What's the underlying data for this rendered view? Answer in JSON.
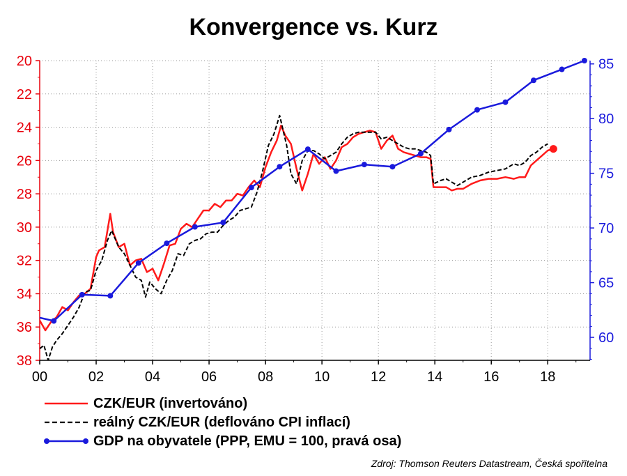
{
  "chart_data": {
    "type": "line",
    "title": "Konvergence vs. Kurz",
    "source": "Zdroj: Thomson Reuters Datastream, Česká spořitelna",
    "x_axis": {
      "range": [
        2000,
        2019.5
      ],
      "ticks": [
        2000,
        2002,
        2004,
        2006,
        2008,
        2010,
        2012,
        2014,
        2016,
        2018
      ],
      "tick_labels": [
        "00",
        "02",
        "04",
        "06",
        "08",
        "10",
        "12",
        "14",
        "16",
        "18"
      ]
    },
    "y_left": {
      "range": [
        38,
        20
      ],
      "inverted": true,
      "ticks": [
        20,
        22,
        24,
        26,
        28,
        30,
        32,
        34,
        36,
        38
      ],
      "tick_labels": [
        "20",
        "22",
        "24",
        "26",
        "28",
        "30",
        "32",
        "34",
        "36",
        "38"
      ],
      "color": "#e8000b"
    },
    "y_right": {
      "range": [
        57.9,
        85.3
      ],
      "ticks": [
        60,
        65,
        70,
        75,
        80,
        85
      ],
      "tick_labels": [
        "60",
        "65",
        "70",
        "75",
        "80",
        "85"
      ],
      "color": "#1a1adc"
    },
    "grid": true,
    "legend_position": "bottom",
    "series": [
      {
        "name": "CZK/EUR (invertováno)",
        "axis": "left",
        "color": "#ff1a1a",
        "style": "solid",
        "x": [
          2000.0,
          2000.2,
          2000.4,
          2000.6,
          2000.8,
          2001.0,
          2001.2,
          2001.4,
          2001.6,
          2001.8,
          2002.0,
          2002.1,
          2002.3,
          2002.5,
          2002.6,
          2002.8,
          2003.0,
          2003.2,
          2003.4,
          2003.6,
          2003.8,
          2004.0,
          2004.2,
          2004.4,
          2004.6,
          2004.8,
          2005.0,
          2005.2,
          2005.4,
          2005.6,
          2005.8,
          2006.0,
          2006.2,
          2006.4,
          2006.6,
          2006.8,
          2007.0,
          2007.2,
          2007.4,
          2007.6,
          2007.8,
          2008.0,
          2008.2,
          2008.4,
          2008.55,
          2008.7,
          2008.9,
          2009.1,
          2009.3,
          2009.5,
          2009.7,
          2009.9,
          2010.1,
          2010.3,
          2010.5,
          2010.7,
          2010.9,
          2011.1,
          2011.3,
          2011.5,
          2011.7,
          2011.9,
          2012.1,
          2012.3,
          2012.5,
          2012.7,
          2012.9,
          2013.1,
          2013.3,
          2013.5,
          2013.7,
          2013.85,
          2013.95,
          2014.2,
          2014.4,
          2014.6,
          2014.8,
          2015.0,
          2015.3,
          2015.6,
          2015.9,
          2016.2,
          2016.5,
          2016.8,
          2017.0,
          2017.2,
          2017.4,
          2017.6,
          2017.8,
          2018.0,
          2018.2
        ],
        "y": [
          35.6,
          36.2,
          35.7,
          35.4,
          34.8,
          35.0,
          34.5,
          34.1,
          34.0,
          33.7,
          31.8,
          31.4,
          31.2,
          29.2,
          30.3,
          31.2,
          31.0,
          32.3,
          32.0,
          31.9,
          32.7,
          32.5,
          33.2,
          32.2,
          31.1,
          31.0,
          30.1,
          29.8,
          30.0,
          29.5,
          29.0,
          29.0,
          28.6,
          28.8,
          28.4,
          28.4,
          28.0,
          28.1,
          27.6,
          27.2,
          27.6,
          26.4,
          25.5,
          24.8,
          23.9,
          24.5,
          25.0,
          26.5,
          27.8,
          26.8,
          25.6,
          26.2,
          25.8,
          26.5,
          26.0,
          25.2,
          25.0,
          24.6,
          24.4,
          24.3,
          24.2,
          24.3,
          25.3,
          24.8,
          24.5,
          25.3,
          25.5,
          25.6,
          25.7,
          25.8,
          25.8,
          25.9,
          27.6,
          27.6,
          27.6,
          27.8,
          27.7,
          27.7,
          27.4,
          27.2,
          27.1,
          27.1,
          27.0,
          27.1,
          27.0,
          27.0,
          26.3,
          26.0,
          25.7,
          25.4,
          25.3
        ]
      },
      {
        "name": "reálný CZK/EUR (deflováno CPI inflací)",
        "axis": "left",
        "color": "#000000",
        "style": "dashed",
        "x": [
          2000.0,
          2000.15,
          2000.3,
          2000.45,
          2000.6,
          2000.8,
          2001.0,
          2001.2,
          2001.4,
          2001.6,
          2001.8,
          2002.0,
          2002.2,
          2002.4,
          2002.55,
          2002.8,
          2003.0,
          2003.2,
          2003.4,
          2003.6,
          2003.75,
          2003.9,
          2004.1,
          2004.3,
          2004.5,
          2004.7,
          2004.9,
          2005.1,
          2005.3,
          2005.5,
          2005.7,
          2005.9,
          2006.1,
          2006.3,
          2006.5,
          2006.7,
          2006.9,
          2007.1,
          2007.3,
          2007.5,
          2007.7,
          2007.9,
          2008.1,
          2008.3,
          2008.5,
          2008.6,
          2008.75,
          2008.9,
          2009.1,
          2009.3,
          2009.5,
          2009.7,
          2009.9,
          2010.1,
          2010.3,
          2010.5,
          2010.7,
          2010.9,
          2011.1,
          2011.3,
          2011.5,
          2011.7,
          2011.9,
          2012.1,
          2012.3,
          2012.5,
          2012.7,
          2012.9,
          2013.1,
          2013.3,
          2013.5,
          2013.7,
          2013.85,
          2013.95,
          2014.2,
          2014.4,
          2014.6,
          2014.8,
          2015.0,
          2015.3,
          2015.6,
          2015.9,
          2016.2,
          2016.5,
          2016.8,
          2017.0,
          2017.2,
          2017.4,
          2017.6,
          2017.8,
          2018.0
        ],
        "y": [
          37.3,
          37.1,
          38.0,
          37.2,
          36.8,
          36.4,
          35.9,
          35.4,
          34.8,
          33.9,
          33.8,
          32.6,
          32.0,
          30.8,
          30.2,
          31.2,
          31.6,
          32.3,
          33.0,
          33.2,
          34.2,
          33.3,
          33.7,
          34.0,
          33.2,
          32.6,
          31.6,
          31.7,
          31.0,
          30.8,
          30.7,
          30.4,
          30.3,
          30.3,
          29.9,
          29.6,
          29.4,
          29.0,
          28.9,
          28.8,
          27.9,
          26.6,
          25.1,
          24.4,
          23.3,
          24.0,
          25.1,
          26.8,
          27.4,
          26.0,
          25.4,
          25.4,
          25.6,
          25.9,
          25.7,
          25.5,
          25.0,
          24.6,
          24.4,
          24.3,
          24.3,
          24.3,
          24.3,
          24.7,
          24.6,
          24.8,
          25.0,
          25.2,
          25.3,
          25.3,
          25.4,
          25.5,
          25.7,
          27.4,
          27.2,
          27.1,
          27.3,
          27.5,
          27.3,
          27.0,
          26.9,
          26.7,
          26.6,
          26.5,
          26.2,
          26.3,
          26.1,
          25.7,
          25.5,
          25.2,
          25.0
        ]
      },
      {
        "name": "GDP na obyvatele (PPP, EMU = 100, pravá osa)",
        "axis": "right",
        "color": "#1a1adc",
        "style": "solid-markers",
        "x": [
          2000.0,
          2000.5,
          2001.5,
          2002.5,
          2003.5,
          2004.5,
          2005.5,
          2006.5,
          2007.5,
          2008.5,
          2009.5,
          2010.5,
          2011.5,
          2012.5,
          2013.5,
          2014.5,
          2015.5,
          2016.5,
          2017.5,
          2018.5,
          2019.3
        ],
        "y": [
          61.8,
          61.5,
          63.9,
          63.8,
          66.8,
          68.6,
          70.1,
          70.5,
          73.7,
          75.6,
          77.2,
          75.2,
          75.8,
          75.6,
          76.8,
          79.0,
          80.8,
          81.5,
          83.5,
          84.5,
          85.3
        ],
        "markers_from_index": 1
      }
    ],
    "end_marker": {
      "series": 0,
      "x": 2018.2,
      "y": 25.3,
      "color": "#ff1a1a"
    }
  }
}
